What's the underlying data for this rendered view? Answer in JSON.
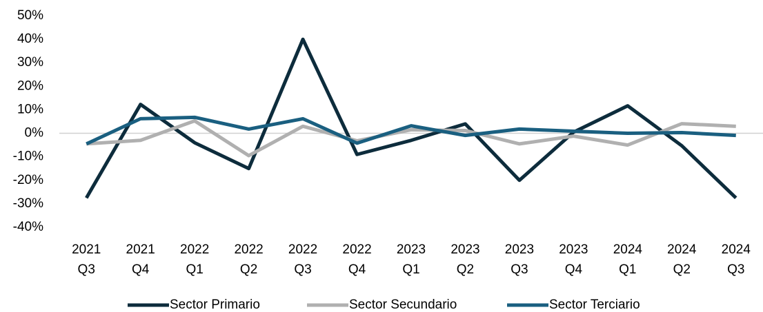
{
  "chart_data": {
    "type": "line",
    "categories": [
      "2021 Q3",
      "2021 Q4",
      "2022 Q1",
      "2022 Q2",
      "2022 Q3",
      "2022 Q4",
      "2023 Q1",
      "2023 Q2",
      "2023 Q3",
      "2023 Q4",
      "2024 Q1",
      "2024 Q2",
      "2024 Q3"
    ],
    "series": [
      {
        "name": "Sector Primario",
        "color": "#0d2c3c",
        "values": [
          -27.5,
          12.3,
          -4,
          -15,
          40,
          -9,
          -3,
          4,
          -20,
          0.5,
          11.7,
          -5.3,
          -27.5
        ]
      },
      {
        "name": "Sector Secundario",
        "color": "#b0b0b0",
        "values": [
          -4.5,
          -3,
          5.3,
          -9.5,
          3,
          -3.2,
          1.5,
          1.2,
          -4.5,
          -1.2,
          -5,
          4.1,
          3
        ]
      },
      {
        "name": "Sector Terciario",
        "color": "#1a5f80",
        "values": [
          -4.5,
          6.2,
          6.8,
          1.8,
          6.2,
          -4.2,
          3.2,
          -0.9,
          1.8,
          0.9,
          0,
          0.3,
          -0.9
        ]
      }
    ],
    "ylim": [
      -40,
      50
    ],
    "yticks": [
      {
        "value": 50,
        "label": "50%"
      },
      {
        "value": 40,
        "label": "40%"
      },
      {
        "value": 30,
        "label": "30%"
      },
      {
        "value": 20,
        "label": "20%"
      },
      {
        "value": 10,
        "label": "10%"
      },
      {
        "value": 0,
        "label": "0%"
      },
      {
        "value": -10,
        "label": "-10%"
      },
      {
        "value": -20,
        "label": "-20%"
      },
      {
        "value": -30,
        "label": "-30%"
      },
      {
        "value": -40,
        "label": "-40%"
      }
    ],
    "legend": "bottom"
  }
}
